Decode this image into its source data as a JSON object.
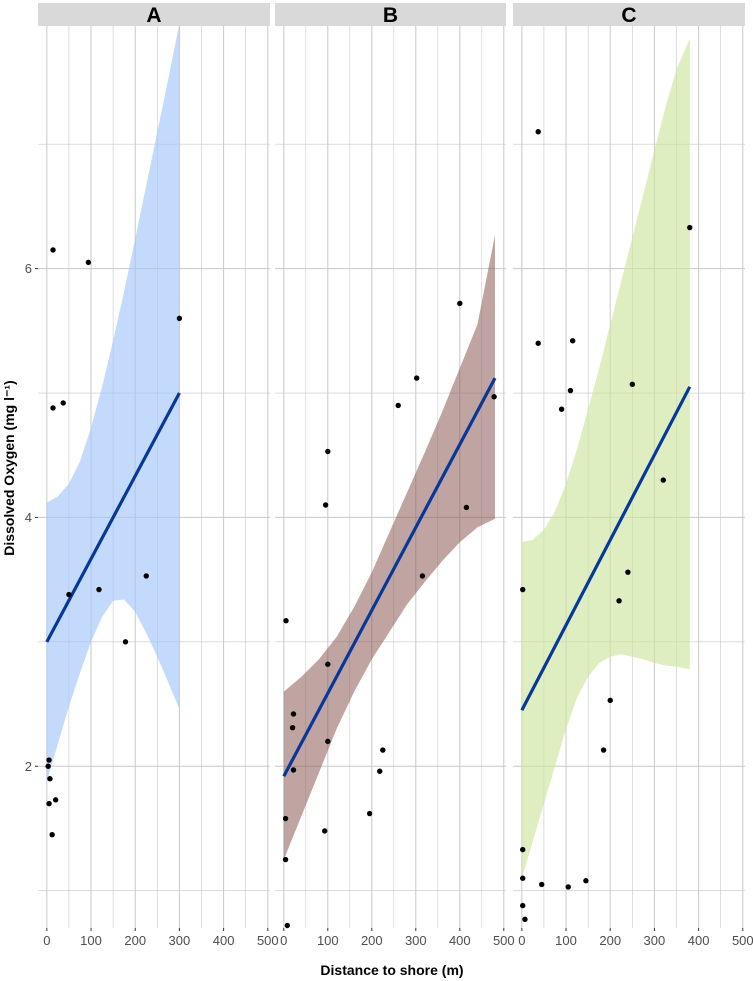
{
  "chart_data": {
    "type": "scatter",
    "xlabel": "Distance to shore (m)",
    "ylabel": "Dissolved Oxygen (mg l⁻¹)",
    "xlim": [
      -20,
      505
    ],
    "ylim": [
      0.7,
      7.95
    ],
    "x_ticks": [
      0,
      100,
      200,
      300,
      400,
      500
    ],
    "y_ticks": [
      2,
      4,
      6
    ],
    "grid": true,
    "panels": [
      {
        "label": "A",
        "ribbon_color": "#a4c6fb",
        "points": [
          [
            14,
            6.15
          ],
          [
            94,
            6.05
          ],
          [
            300,
            5.6
          ],
          [
            14,
            4.88
          ],
          [
            37,
            4.92
          ],
          [
            50,
            3.38
          ],
          [
            118,
            3.42
          ],
          [
            225,
            3.53
          ],
          [
            178,
            3.0
          ],
          [
            5,
            2.05
          ],
          [
            3,
            2.0
          ],
          [
            7,
            1.9
          ],
          [
            20,
            1.73
          ],
          [
            5,
            1.7
          ],
          [
            12,
            1.45
          ]
        ],
        "fit": {
          "x": [
            0,
            300
          ],
          "y": [
            3.0,
            5.0
          ]
        },
        "ribbon": {
          "x": [
            0,
            25,
            50,
            75,
            100,
            125,
            150,
            175,
            200,
            225,
            250,
            275,
            300
          ],
          "upper": [
            4.12,
            4.17,
            4.27,
            4.45,
            4.72,
            5.05,
            5.42,
            5.82,
            6.24,
            6.67,
            7.1,
            7.53,
            7.97
          ],
          "lower": [
            1.88,
            2.18,
            2.48,
            2.75,
            3.0,
            3.2,
            3.33,
            3.34,
            3.24,
            3.07,
            2.88,
            2.67,
            2.46
          ]
        }
      },
      {
        "label": "B",
        "ribbon_color": "#8b5a55",
        "points": [
          [
            400,
            5.72
          ],
          [
            302,
            5.12
          ],
          [
            260,
            4.9
          ],
          [
            478,
            4.97
          ],
          [
            100,
            4.53
          ],
          [
            95,
            4.1
          ],
          [
            415,
            4.08
          ],
          [
            315,
            3.53
          ],
          [
            5,
            3.17
          ],
          [
            100,
            2.82
          ],
          [
            22,
            2.42
          ],
          [
            20,
            2.31
          ],
          [
            100,
            2.2
          ],
          [
            225,
            2.13
          ],
          [
            22,
            1.97
          ],
          [
            218,
            1.96
          ],
          [
            195,
            1.62
          ],
          [
            4,
            1.58
          ],
          [
            93,
            1.48
          ],
          [
            4,
            1.25
          ],
          [
            8,
            0.72
          ]
        ],
        "fit": {
          "x": [
            0,
            480
          ],
          "y": [
            1.92,
            5.12
          ]
        },
        "ribbon": {
          "x": [
            0,
            40,
            80,
            120,
            160,
            200,
            240,
            280,
            320,
            360,
            400,
            440,
            480
          ],
          "upper": [
            2.6,
            2.72,
            2.86,
            3.04,
            3.28,
            3.56,
            3.88,
            4.2,
            4.52,
            4.85,
            5.2,
            5.55,
            6.27
          ],
          "lower": [
            1.25,
            1.6,
            1.95,
            2.3,
            2.6,
            2.86,
            3.08,
            3.3,
            3.48,
            3.65,
            3.8,
            3.92,
            3.99
          ]
        }
      },
      {
        "label": "C",
        "ribbon_color": "#cce5a0",
        "points": [
          [
            37,
            7.1
          ],
          [
            380,
            6.33
          ],
          [
            37,
            5.4
          ],
          [
            115,
            5.42
          ],
          [
            110,
            5.02
          ],
          [
            90,
            4.87
          ],
          [
            250,
            5.07
          ],
          [
            320,
            4.3
          ],
          [
            240,
            3.56
          ],
          [
            2,
            3.42
          ],
          [
            220,
            3.33
          ],
          [
            200,
            2.53
          ],
          [
            185,
            2.13
          ],
          [
            2,
            1.33
          ],
          [
            2,
            1.1
          ],
          [
            45,
            1.05
          ],
          [
            105,
            1.03
          ],
          [
            145,
            1.08
          ],
          [
            2,
            0.88
          ],
          [
            7,
            0.77
          ]
        ],
        "fit": {
          "x": [
            0,
            380
          ],
          "y": [
            2.45,
            5.05
          ]
        },
        "ribbon": {
          "x": [
            0,
            25,
            50,
            75,
            100,
            125,
            150,
            175,
            200,
            225,
            250,
            275,
            300,
            325,
            350,
            380
          ],
          "upper": [
            3.8,
            3.82,
            3.9,
            4.05,
            4.27,
            4.55,
            4.87,
            5.2,
            5.55,
            5.9,
            6.25,
            6.6,
            6.95,
            7.3,
            7.6,
            7.85
          ],
          "lower": [
            1.1,
            1.4,
            1.7,
            2.0,
            2.3,
            2.55,
            2.72,
            2.83,
            2.88,
            2.9,
            2.88,
            2.86,
            2.83,
            2.81,
            2.8,
            2.78
          ]
        }
      }
    ]
  },
  "colors": {
    "strip_bg": "#d9d9d9",
    "grid": "#c8c8c8",
    "fit_line": "#08379a",
    "point": "#000000"
  }
}
